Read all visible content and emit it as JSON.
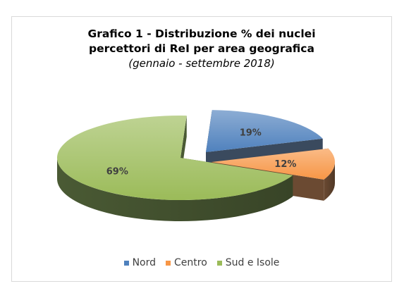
{
  "chart_data": {
    "type": "pie",
    "title_line1": "Grafico 1 - Distribuzione % dei nuclei",
    "title_line2": "percettori di ReI per area geografica",
    "subtitle": "(gennaio - settembre 2018)",
    "categories": [
      "Nord",
      "Centro",
      "Sud e Isole"
    ],
    "values": [
      19,
      12,
      69
    ],
    "data_labels": [
      "19%",
      "12%",
      "69%"
    ],
    "legend_position": "bottom",
    "three_d": true,
    "exploded": true,
    "colors": {
      "Nord": "#4f81bd",
      "Centro": "#f79646",
      "Sud e Isole": "#9bbb59"
    },
    "side_colors": {
      "Nord": "#3a4a5e",
      "Centro": "#6b4a32",
      "Sud e Isole": "#4a5a34"
    }
  }
}
